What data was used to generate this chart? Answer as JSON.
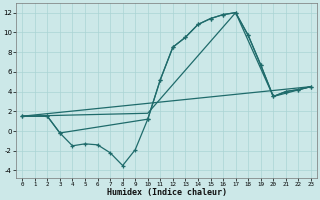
{
  "xlabel": "Humidex (Indice chaleur)",
  "bg_color": "#cce8e8",
  "line_color": "#1f6b6b",
  "grid_color": "#aad4d4",
  "xlim": [
    -0.5,
    23.5
  ],
  "ylim": [
    -4.8,
    13.0
  ],
  "xticks": [
    0,
    1,
    2,
    3,
    4,
    5,
    6,
    7,
    8,
    9,
    10,
    11,
    12,
    13,
    14,
    15,
    16,
    17,
    18,
    19,
    20,
    21,
    22,
    23
  ],
  "yticks": [
    -4,
    -2,
    0,
    2,
    4,
    6,
    8,
    10,
    12
  ],
  "lines": [
    {
      "x": [
        0,
        2,
        3,
        4,
        5,
        6,
        7,
        8,
        9,
        10,
        11,
        12,
        13,
        14,
        15,
        16,
        17,
        18,
        19,
        20,
        21,
        22,
        23
      ],
      "y": [
        1.5,
        1.5,
        -0.2,
        -1.5,
        -1.3,
        -1.4,
        -2.2,
        -3.5,
        -1.9,
        1.2,
        5.2,
        8.5,
        9.5,
        10.8,
        11.4,
        11.8,
        12.0,
        9.7,
        6.7,
        3.5,
        4.0,
        4.2,
        4.5
      ],
      "marker": true,
      "lw": 0.9
    },
    {
      "x": [
        0,
        2,
        3,
        10,
        11,
        12,
        13,
        14,
        15,
        16,
        17,
        18,
        19,
        20,
        21,
        22,
        23
      ],
      "y": [
        1.5,
        1.5,
        -0.2,
        1.2,
        5.2,
        8.5,
        9.5,
        10.8,
        11.4,
        11.8,
        12.0,
        9.7,
        6.7,
        3.5,
        4.0,
        4.2,
        4.5
      ],
      "marker": true,
      "lw": 0.9
    },
    {
      "x": [
        0,
        10,
        17,
        20,
        23
      ],
      "y": [
        1.5,
        1.8,
        12.0,
        3.5,
        4.5
      ],
      "marker": false,
      "lw": 0.9
    },
    {
      "x": [
        0,
        23
      ],
      "y": [
        1.5,
        4.5
      ],
      "marker": false,
      "lw": 0.9
    }
  ]
}
